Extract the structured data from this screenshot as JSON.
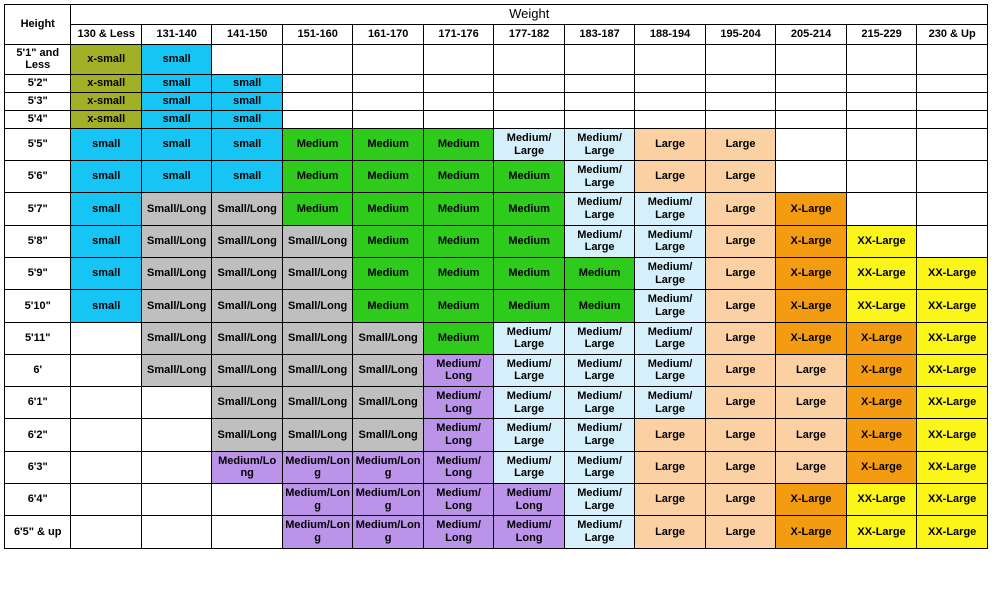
{
  "type": "table",
  "title": "Weight",
  "row_header": "Height",
  "colors": {
    "xsmall": "#a2b027",
    "small": "#17c5f4",
    "small_long": "#bfbfbf",
    "medium": "#2ecb1c",
    "medium_large": "#d5f0fb",
    "medium_long": "#bb93e8",
    "large": "#fbd0a3",
    "xlarge": "#f39c12",
    "xxlarge": "#fcf51a",
    "white": "#ffffff"
  },
  "weight_columns": [
    "130 & Less",
    "131-140",
    "141-150",
    "151-160",
    "161-170",
    "171-176",
    "177-182",
    "183-187",
    "188-194",
    "195-204",
    "205-214",
    "215-229",
    "230 & Up"
  ],
  "heights": [
    "5'1\" and Less",
    "5'2\"",
    "5'3\"",
    "5'4\"",
    "5'5\"",
    "5'6\"",
    "5'7\"",
    "5'8\"",
    "5'9\"",
    "5'10\"",
    "5'11\"",
    "6'",
    "6'1\"",
    "6'2\"",
    "6'3\"",
    "6'4\"",
    "6'5\" & up"
  ],
  "labels": {
    "XS": "x-small",
    "S": "small",
    "SL": "Small/Long",
    "M": "Medium",
    "ML": "Medium/ Large",
    "MLO": "Medium/ Long",
    "MLONG": "Medium/Long",
    "MLONG_WRAP": "Medium/Lo ng",
    "L": "Large",
    "XL": "X-Large",
    "XXL": "XX-Large",
    "BLANK": ""
  },
  "label_colors": {
    "XS": "xsmall",
    "S": "small",
    "SL": "small_long",
    "M": "medium",
    "ML": "medium_large",
    "MLO": "medium_long",
    "MLONG": "medium_long",
    "MLONG_WRAP": "medium_long",
    "L": "large",
    "XL": "xlarge",
    "XXL": "xxlarge",
    "BLANK": "white"
  },
  "short_rows": [
    0,
    1,
    2,
    3
  ],
  "grid": [
    [
      "XS",
      "S",
      "BLANK",
      "BLANK",
      "BLANK",
      "BLANK",
      "BLANK",
      "BLANK",
      "BLANK",
      "BLANK",
      "BLANK",
      "BLANK",
      "BLANK"
    ],
    [
      "XS",
      "S",
      "S",
      "BLANK",
      "BLANK",
      "BLANK",
      "BLANK",
      "BLANK",
      "BLANK",
      "BLANK",
      "BLANK",
      "BLANK",
      "BLANK"
    ],
    [
      "XS",
      "S",
      "S",
      "BLANK",
      "BLANK",
      "BLANK",
      "BLANK",
      "BLANK",
      "BLANK",
      "BLANK",
      "BLANK",
      "BLANK",
      "BLANK"
    ],
    [
      "XS",
      "S",
      "S",
      "BLANK",
      "BLANK",
      "BLANK",
      "BLANK",
      "BLANK",
      "BLANK",
      "BLANK",
      "BLANK",
      "BLANK",
      "BLANK"
    ],
    [
      "S",
      "S",
      "S",
      "M",
      "M",
      "M",
      "ML",
      "ML",
      "L",
      "L",
      "BLANK",
      "BLANK",
      "BLANK"
    ],
    [
      "S",
      "S",
      "S",
      "M",
      "M",
      "M",
      "M",
      "ML",
      "L",
      "L",
      "BLANK",
      "BLANK",
      "BLANK"
    ],
    [
      "S",
      "SL",
      "SL",
      "M",
      "M",
      "M",
      "M",
      "ML",
      "ML",
      "L",
      "XL",
      "BLANK",
      "BLANK"
    ],
    [
      "S",
      "SL",
      "SL",
      "SL",
      "M",
      "M",
      "M",
      "ML",
      "ML",
      "L",
      "XL",
      "XXL",
      "BLANK"
    ],
    [
      "S",
      "SL",
      "SL",
      "SL",
      "M",
      "M",
      "M",
      "M",
      "ML",
      "L",
      "XL",
      "XXL",
      "XXL"
    ],
    [
      "S",
      "SL",
      "SL",
      "SL",
      "M",
      "M",
      "M",
      "M",
      "ML",
      "L",
      "XL",
      "XXL",
      "XXL"
    ],
    [
      "BLANK",
      "SL",
      "SL",
      "SL",
      "SL",
      "M",
      "ML",
      "ML",
      "ML",
      "L",
      "XL",
      "XL",
      "XXL"
    ],
    [
      "BLANK",
      "SL",
      "SL",
      "SL",
      "SL",
      "MLO",
      "ML",
      "ML",
      "ML",
      "L",
      "L",
      "XL",
      "XXL"
    ],
    [
      "BLANK",
      "BLANK",
      "SL",
      "SL",
      "SL",
      "MLO",
      "ML",
      "ML",
      "ML",
      "L",
      "L",
      "XL",
      "XXL"
    ],
    [
      "BLANK",
      "BLANK",
      "SL",
      "SL",
      "SL",
      "MLO",
      "ML",
      "ML",
      "L",
      "L",
      "L",
      "XL",
      "XXL"
    ],
    [
      "BLANK",
      "BLANK",
      "MLONG_WRAP",
      "MLONG",
      "MLONG",
      "MLO",
      "ML",
      "ML",
      "L",
      "L",
      "L",
      "XL",
      "XXL"
    ],
    [
      "BLANK",
      "BLANK",
      "BLANK",
      "MLONG",
      "MLONG",
      "MLO",
      "MLO",
      "ML",
      "L",
      "L",
      "XL",
      "XXL",
      "XXL"
    ],
    [
      "BLANK",
      "BLANK",
      "BLANK",
      "MLONG",
      "MLONG",
      "MLO",
      "MLO",
      "ML",
      "L",
      "L",
      "XL",
      "XXL",
      "XXL"
    ]
  ]
}
